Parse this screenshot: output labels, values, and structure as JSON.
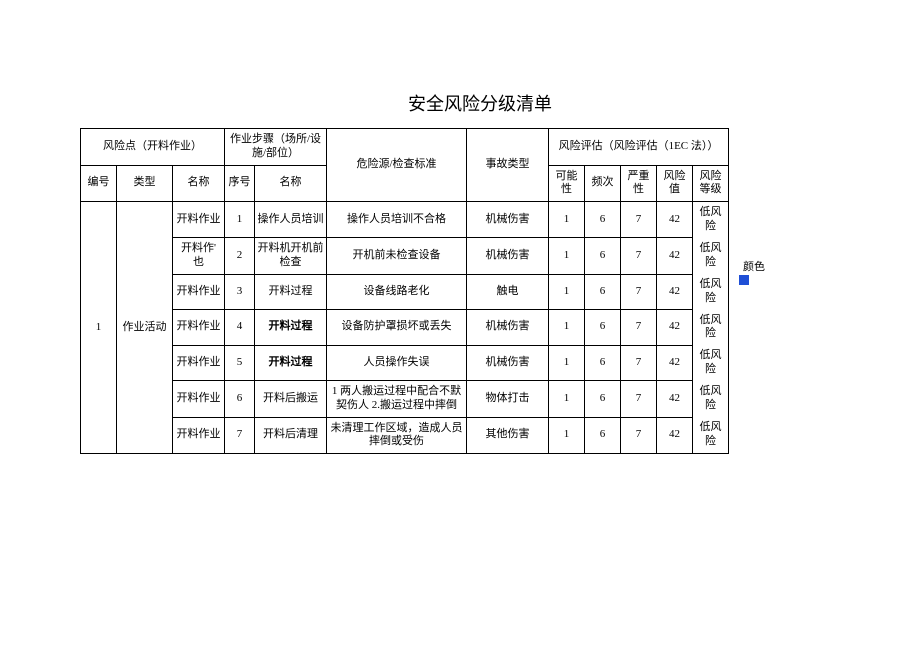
{
  "doc": {
    "title": "安全风险分级清单",
    "headers": {
      "risk_point_group": "风险点（开料作业）",
      "step_group": "作业步骤（场所/设施/部位）",
      "eval_group": "风险评估（风险评估（1EC 法））",
      "col_bh": "编号",
      "col_lx": "类型",
      "col_mc": "名称",
      "col_xh": "序号",
      "col_bzmc": "名称",
      "col_wxy": "危险源/检查标准",
      "col_sglx": "事故类型",
      "col_knx": "可能性",
      "col_pc": "频次",
      "col_yz": "严重性",
      "col_fxz": "风险值",
      "col_dj": "风险等级"
    },
    "group": {
      "id": "1",
      "type": "作业活动"
    },
    "rows": [
      {
        "name": "开料作业",
        "seq": "1",
        "step": "操作人员培训",
        "step_bold": false,
        "hazard": "操作人员培训不合格",
        "acc": "机械伤害",
        "p": "1",
        "f": "6",
        "s": "7",
        "v": "42",
        "level": "低风险"
      },
      {
        "name": "开料作' 也",
        "seq": "2",
        "step": "开料机开机前检查",
        "step_bold": false,
        "hazard": "开机前未检查设备",
        "acc": "机械伤害",
        "p": "1",
        "f": "6",
        "s": "7",
        "v": "42",
        "level": "低风险"
      },
      {
        "name": "开料作业",
        "seq": "3",
        "step": "开料过程",
        "step_bold": false,
        "hazard": "设备线路老化",
        "acc": "触电",
        "p": "1",
        "f": "6",
        "s": "7",
        "v": "42",
        "level": "低风险"
      },
      {
        "name": "开料作业",
        "seq": "4",
        "step": "开料过程",
        "step_bold": true,
        "hazard": "设备防护罩损坏或丢失",
        "acc": "机械伤害",
        "p": "1",
        "f": "6",
        "s": "7",
        "v": "42",
        "level": "低风险"
      },
      {
        "name": "开料作业",
        "seq": "5",
        "step": "开料过程",
        "step_bold": true,
        "hazard": "人员操作失误",
        "acc": "机械伤害",
        "p": "1",
        "f": "6",
        "s": "7",
        "v": "42",
        "level": "低风险"
      },
      {
        "name": "开料作业",
        "seq": "6",
        "step": "开料后搬运",
        "step_bold": false,
        "hazard": "1 两人搬运过程中配合不默契伤人 2.搬运过程中摔倒",
        "acc": "物体打击",
        "p": "1",
        "f": "6",
        "s": "7",
        "v": "42",
        "level": "低风险"
      },
      {
        "name": "开料作业",
        "seq": "7",
        "step": "开料后清理",
        "step_bold": false,
        "hazard": "未清理工作区域，造成人员摔倒或受伤",
        "acc": "其他伤害",
        "p": "1",
        "f": "6",
        "s": "7",
        "v": "42",
        "level": "低风险"
      }
    ],
    "side": {
      "label": "颜色",
      "swatch_color": "#1f4fd6"
    }
  }
}
